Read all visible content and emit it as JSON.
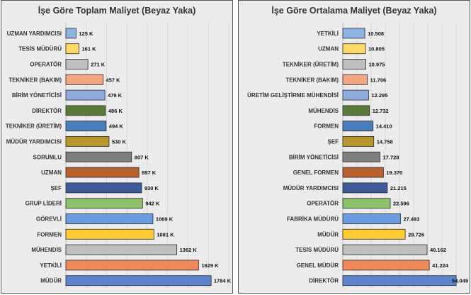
{
  "chart_data": [
    {
      "type": "bar",
      "orientation": "horizontal",
      "title": "İşe Göre Toplam Maliyet (Beyaz Yaka)",
      "xlim": [
        0,
        2000
      ],
      "categories": [
        "UZMAN YARDIMCISI",
        "TESİS MÜDÜRÜ",
        "OPERATÖR",
        "TEKNİKER (BAKIM)",
        "BİRİM YÖNETİCİSİ",
        "DİREKTÖR",
        "TEKNİKER (ÜRETİM)",
        "MÜDÜR YARDIMCISI",
        "SORUMLU",
        "UZMAN",
        "ŞEF",
        "GRUP LİDERİ",
        "GÖREVLİ",
        "FORMEN",
        "MÜHENDİS",
        "YETKİLİ",
        "MÜDÜR"
      ],
      "values": [
        125,
        161,
        271,
        457,
        479,
        486,
        494,
        530,
        807,
        897,
        930,
        942,
        1069,
        1081,
        1362,
        1629,
        1784
      ],
      "value_labels": [
        "125 K",
        "161 K",
        "271 K",
        "457 K",
        "479 K",
        "486 K",
        "494 K",
        "530 K",
        "807 K",
        "897 K",
        "930 K",
        "942 K",
        "1069 K",
        "1081 K",
        "1362 K",
        "1629 K",
        "1784 K"
      ],
      "colors": [
        "#8db3e2",
        "#ffd966",
        "#bfbfbf",
        "#f4a582",
        "#8eaadb",
        "#5a7a3a",
        "#4a7ebb",
        "#b8962e",
        "#7f7f7f",
        "#b8612f",
        "#3d5a99",
        "#8dc26a",
        "#6a9be0",
        "#ffcc33",
        "#bfbfbf",
        "#f0895a",
        "#5b84cc"
      ],
      "grid": "vertical"
    },
    {
      "type": "bar",
      "orientation": "horizontal",
      "title": "İşe Göre Ortalama Maliyet (Beyaz Yaka)",
      "xlim": [
        0,
        54000
      ],
      "categories": [
        "YETKİLİ",
        "UZMAN",
        "TEKNİKER (ÜRETİM)",
        "TEKNİKER (BAKIM)",
        "ÜRETİM GELİŞTİRME MÜHENDİSİ",
        "MÜHENDİS",
        "FORMEN",
        "ŞEF",
        "BİRİM YÖNETİCİSİ",
        "GENEL FORMEN",
        "MÜDÜR YARDIMCISI",
        "OPERATÖR",
        "FABRİKA MÜDÜRÜ",
        "MÜDÜR",
        "TESİS MÜDÜRÜ",
        "GENEL MÜDÜR",
        "DİREKTÖR"
      ],
      "values": [
        10508,
        10805,
        10975,
        11706,
        12295,
        12732,
        14410,
        14758,
        17728,
        19370,
        21215,
        22596,
        27493,
        29726,
        40162,
        41224,
        54049
      ],
      "value_labels": [
        "10.508",
        "10.805",
        "10.975",
        "11.706",
        "12.295",
        "12.732",
        "14.410",
        "14.758",
        "17.728",
        "19.370",
        "21.215",
        "22.596",
        "27.493",
        "29.726",
        "40.162",
        "41.224",
        "54.049"
      ],
      "colors": [
        "#8db3e2",
        "#ffd966",
        "#bfbfbf",
        "#f4a582",
        "#8eaadb",
        "#5a7a3a",
        "#4a7ebb",
        "#b8962e",
        "#7f7f7f",
        "#b8612f",
        "#3d5a99",
        "#8dc26a",
        "#6a9be0",
        "#ffcc33",
        "#bfbfbf",
        "#f0895a",
        "#5b84cc"
      ],
      "grid": "vertical"
    }
  ]
}
